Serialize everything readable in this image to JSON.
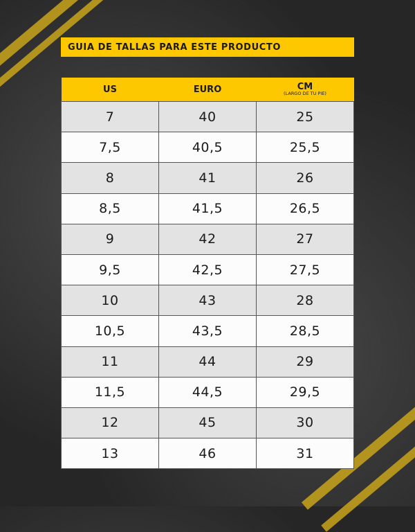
{
  "title": "GUIA DE TALLAS PARA ESTE PRODUCTO",
  "colors": {
    "accent": "#fdc800",
    "background": "#262626"
  },
  "table": {
    "headers": [
      {
        "label": "US"
      },
      {
        "label": "EURO"
      },
      {
        "label": "CM",
        "sub": "(LARGO DE TU PIE)"
      }
    ],
    "rows": [
      [
        "7",
        "40",
        "25"
      ],
      [
        "7,5",
        "40,5",
        "25,5"
      ],
      [
        "8",
        "41",
        "26"
      ],
      [
        "8,5",
        "41,5",
        "26,5"
      ],
      [
        "9",
        "42",
        "27"
      ],
      [
        "9,5",
        "42,5",
        "27,5"
      ],
      [
        "10",
        "43",
        "28"
      ],
      [
        "10,5",
        "43,5",
        "28,5"
      ],
      [
        "11",
        "44",
        "29"
      ],
      [
        "11,5",
        "44,5",
        "29,5"
      ],
      [
        "12",
        "45",
        "30"
      ],
      [
        "13",
        "46",
        "31"
      ]
    ]
  }
}
